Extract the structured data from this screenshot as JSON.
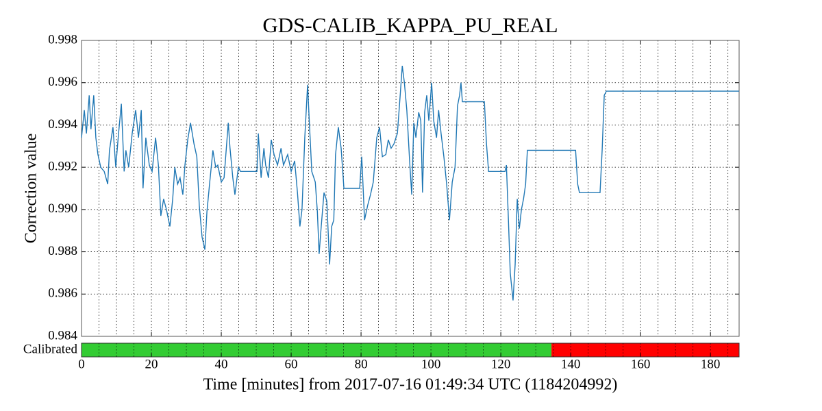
{
  "chart_data": {
    "type": "line",
    "title": "GDS-CALIB_KAPPA_PU_REAL",
    "y_label": "Correction value",
    "x_label": "Time [minutes] from 2017-07-16 01:49:34 UTC (1184204992)",
    "xlim": [
      0,
      188.2
    ],
    "ylim": [
      0.984,
      0.998
    ],
    "xticks": [
      0,
      20,
      40,
      60,
      80,
      100,
      120,
      140,
      160,
      180
    ],
    "yticks": [
      0.984,
      0.986,
      0.988,
      {
        "value": 0.99,
        "label": "0.990"
      },
      0.992,
      0.994,
      0.996,
      0.998
    ],
    "xgrid": [
      5,
      10,
      15,
      20,
      25,
      30,
      35,
      40,
      45,
      50,
      55,
      60,
      65,
      70,
      75,
      80,
      85,
      90,
      95,
      100,
      105,
      110,
      115,
      120,
      125,
      130,
      135,
      140,
      145,
      150,
      155,
      160,
      165,
      170,
      175,
      180,
      185
    ],
    "grid": true,
    "series": [
      {
        "color": "#1f77b4",
        "x": [
          0,
          0.8,
          1.4,
          2.2,
          2.7,
          3.5,
          4.1,
          4.7,
          5.5,
          6.5,
          7.5,
          8.0,
          9.0,
          9.8,
          10.6,
          11.4,
          12.2,
          12.7,
          13.5,
          14.5,
          15.5,
          16.3,
          17.1,
          17.6,
          18.4,
          19.4,
          20.2,
          21.2,
          22.0,
          22.7,
          23.5,
          24.3,
          25.3,
          26.1,
          26.7,
          27.5,
          28.2,
          29.0,
          29.6,
          30.4,
          31.2,
          32.2,
          33.0,
          33.7,
          34.5,
          35.3,
          35.9,
          36.7,
          37.6,
          38.4,
          39.0,
          40.0,
          40.8,
          41.4,
          42.0,
          42.5,
          43.3,
          43.9,
          44.9,
          45.5,
          50.2,
          50.6,
          51.4,
          52.2,
          52.7,
          53.5,
          54.3,
          55.1,
          56.1,
          57.1,
          57.8,
          59.0,
          60.0,
          61.0,
          61.8,
          62.5,
          63.1,
          63.9,
          64.7,
          65.3,
          65.9,
          66.9,
          67.5,
          68.0,
          68.6,
          69.4,
          70.2,
          71.0,
          71.6,
          72.2,
          72.7,
          73.5,
          74.3,
          75.1,
          79.6,
          80.2,
          81.0,
          81.9,
          82.7,
          83.5,
          84.5,
          85.3,
          86.1,
          87.1,
          87.8,
          88.6,
          89.4,
          90.4,
          91.2,
          91.8,
          92.4,
          93.1,
          93.9,
          94.5,
          95.1,
          95.7,
          96.5,
          97.1,
          97.6,
          98.2,
          98.8,
          99.4,
          100.2,
          100.8,
          101.6,
          102.2,
          102.9,
          103.7,
          104.5,
          105.3,
          106.1,
          106.9,
          107.6,
          108.2,
          108.6,
          109.0,
          115.3,
          115.9,
          116.5,
          121.2,
          121.6,
          122.2,
          122.7,
          123.5,
          124.1,
          124.7,
          125.3,
          125.9,
          126.5,
          127.1,
          127.6,
          141.4,
          142.0,
          142.5,
          148.4,
          149.0,
          149.6,
          150.2,
          188.2
        ],
        "values": [
          0.9934,
          0.9947,
          0.9936,
          0.9954,
          0.9938,
          0.9954,
          0.9934,
          0.9926,
          0.992,
          0.9918,
          0.9912,
          0.9928,
          0.9939,
          0.992,
          0.9936,
          0.995,
          0.9918,
          0.9928,
          0.992,
          0.9936,
          0.9947,
          0.9934,
          0.9947,
          0.991,
          0.9934,
          0.9921,
          0.9918,
          0.9934,
          0.9921,
          0.9897,
          0.9905,
          0.99,
          0.9892,
          0.9905,
          0.992,
          0.9912,
          0.9915,
          0.9907,
          0.9921,
          0.9933,
          0.9941,
          0.9931,
          0.9925,
          0.9902,
          0.9887,
          0.9881,
          0.9899,
          0.9913,
          0.9928,
          0.992,
          0.9921,
          0.9913,
          0.9915,
          0.9928,
          0.9941,
          0.9929,
          0.9915,
          0.9907,
          0.992,
          0.9918,
          0.9918,
          0.9936,
          0.9915,
          0.9929,
          0.9921,
          0.9915,
          0.9933,
          0.9926,
          0.9921,
          0.9929,
          0.9921,
          0.9926,
          0.9918,
          0.9923,
          0.9908,
          0.9892,
          0.99,
          0.9934,
          0.9959,
          0.9938,
          0.9918,
          0.9913,
          0.9899,
          0.9879,
          0.9892,
          0.9908,
          0.9904,
          0.9874,
          0.9892,
          0.9895,
          0.9926,
          0.9939,
          0.9929,
          0.991,
          0.991,
          0.9925,
          0.9895,
          0.9902,
          0.9907,
          0.9913,
          0.9934,
          0.9939,
          0.9925,
          0.9926,
          0.9933,
          0.9929,
          0.9931,
          0.9936,
          0.9954,
          0.9968,
          0.996,
          0.9947,
          0.9923,
          0.9907,
          0.9941,
          0.9934,
          0.9946,
          0.9942,
          0.9908,
          0.9946,
          0.9954,
          0.9942,
          0.996,
          0.9942,
          0.9934,
          0.9947,
          0.9936,
          0.9925,
          0.9912,
          0.9895,
          0.9913,
          0.992,
          0.9949,
          0.9954,
          0.996,
          0.9951,
          0.9951,
          0.9931,
          0.9918,
          0.9918,
          0.9921,
          0.9894,
          0.987,
          0.9857,
          0.9874,
          0.9905,
          0.9891,
          0.99,
          0.9905,
          0.9912,
          0.9928,
          0.9928,
          0.9912,
          0.9908,
          0.9908,
          0.9928,
          0.9954,
          0.9956,
          0.9956
        ]
      }
    ],
    "segments": {
      "label": "Calibrated",
      "spans": [
        {
          "start": 0,
          "end": 134.5,
          "color": "#33cc33"
        },
        {
          "start": 134.5,
          "end": 188.2,
          "color": "#ff0000"
        }
      ]
    }
  }
}
